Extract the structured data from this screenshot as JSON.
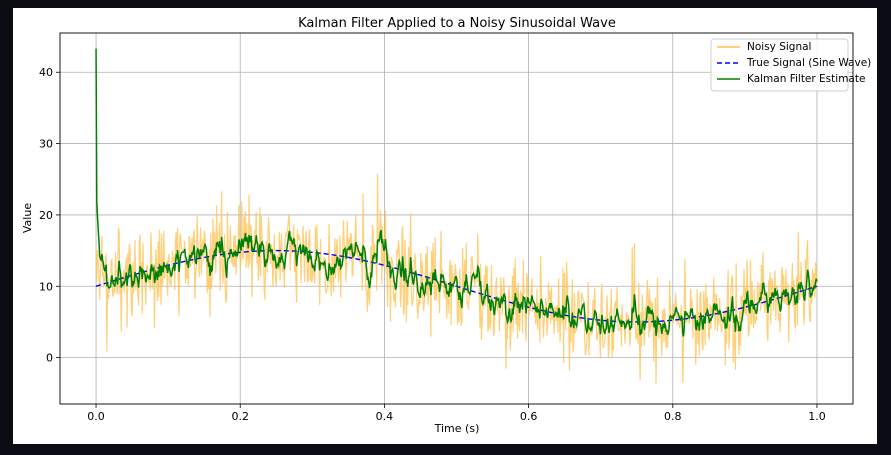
{
  "chart_data": {
    "type": "line",
    "title": "Kalman Filter Applied to a Noisy Sinusoidal Wave",
    "xlabel": "Time (s)",
    "ylabel": "Value",
    "xlim": [
      -0.05,
      1.05
    ],
    "ylim": [
      -6.5,
      45.5
    ],
    "xticks": [
      0.0,
      0.2,
      0.4,
      0.6,
      0.8,
      1.0
    ],
    "xtick_labels": [
      "0.0",
      "0.2",
      "0.4",
      "0.6",
      "0.8",
      "1.0"
    ],
    "yticks": [
      0,
      10,
      20,
      30,
      40
    ],
    "ytick_labels": [
      "0",
      "10",
      "20",
      "30",
      "40"
    ],
    "grid": true,
    "legend_position": "top-right",
    "true_signal": {
      "offset": 10,
      "amplitude": 5,
      "frequency_hz": 1,
      "x_start": 0.0,
      "x_end": 1.0,
      "n_points": 1000
    },
    "kalman_initial_value": 43.3,
    "series": [
      {
        "name": "Noisy Signal",
        "color": "#ffc04d",
        "style": "solid"
      },
      {
        "name": "True Signal (Sine Wave)",
        "color": "#0000ff",
        "style": "dashed"
      },
      {
        "name": "Kalman Filter Estimate",
        "color": "#008000",
        "style": "solid"
      }
    ]
  }
}
